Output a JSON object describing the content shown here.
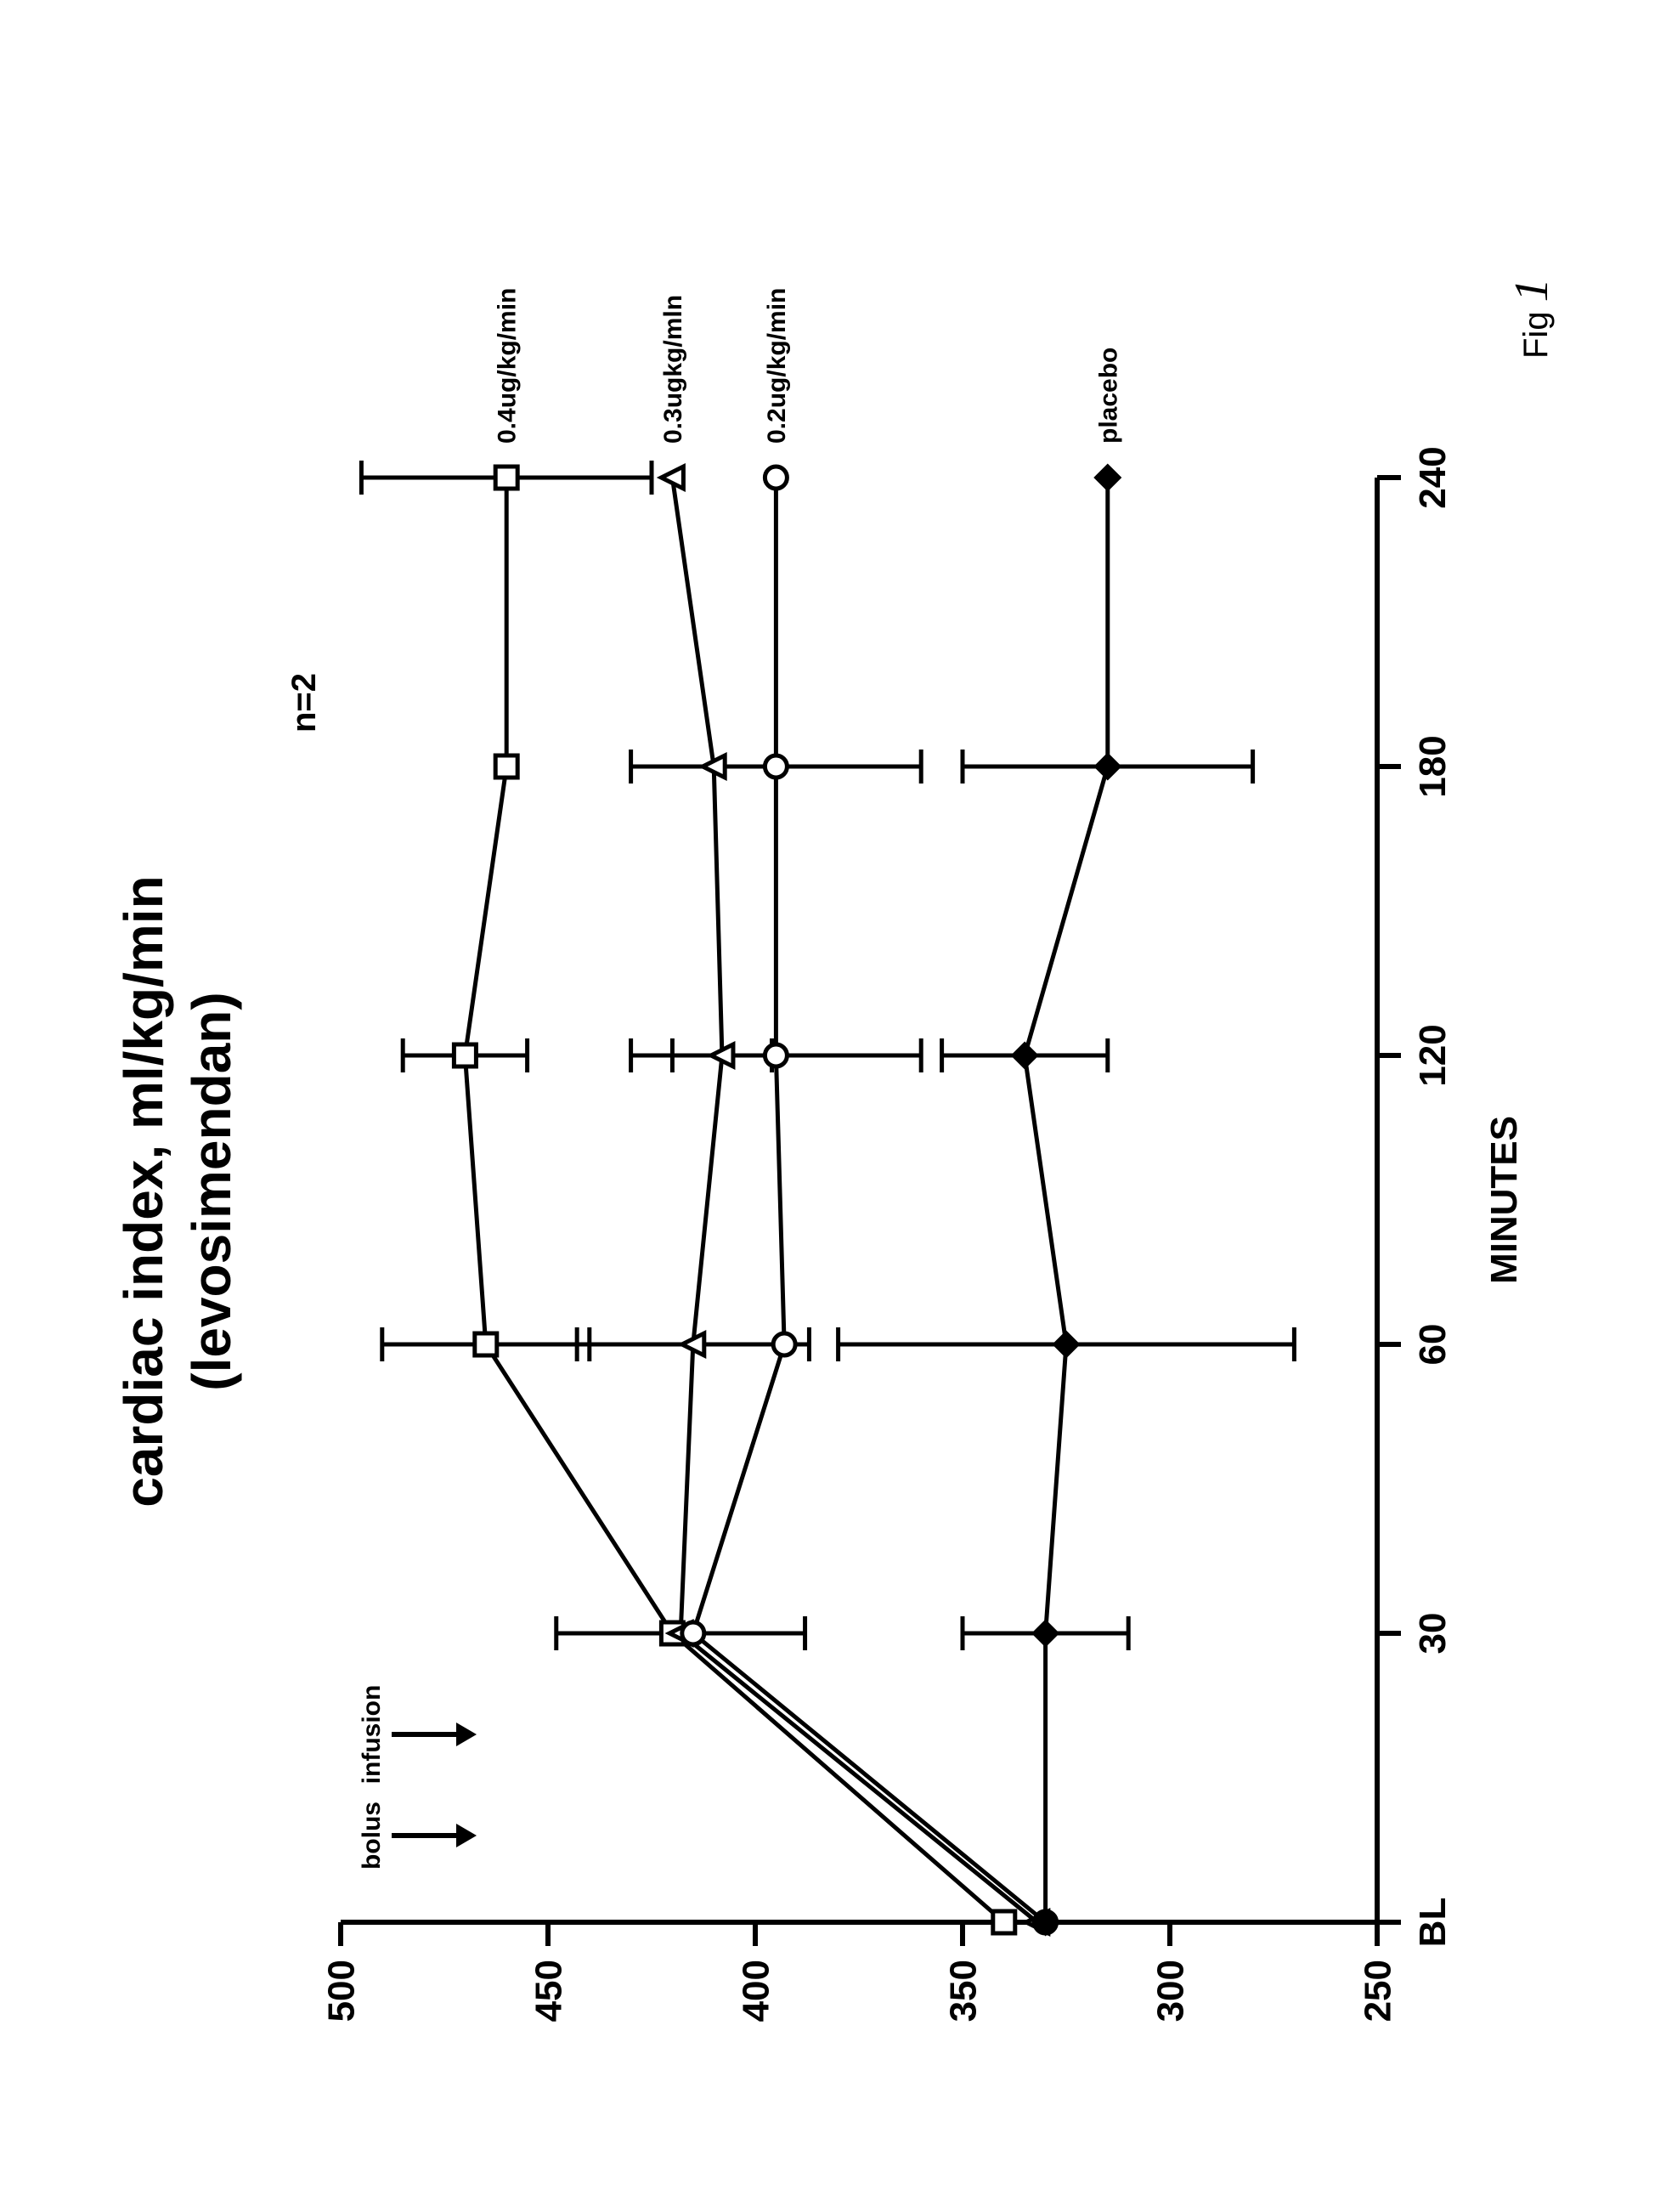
{
  "figure": {
    "type": "line",
    "rotation_deg": -90,
    "title_line1": "cardiac index, ml/kg/min",
    "title_line2": "(levosimendan)",
    "title_fontsize": 64,
    "title_fontweight": "bold",
    "xaxis": {
      "label": "MINUTES",
      "label_fontsize": 44,
      "label_fontweight": "bold",
      "categories": [
        "BL",
        "30",
        "60",
        "120",
        "180",
        "240"
      ],
      "tick_fontsize": 44,
      "tick_fontweight": "bold"
    },
    "yaxis": {
      "ylim": [
        250,
        500
      ],
      "ticks": [
        250,
        300,
        350,
        400,
        450,
        500
      ],
      "tick_fontsize": 44,
      "tick_fontweight": "bold"
    },
    "series": [
      {
        "id": "s04",
        "label": "0.4ug/kg/min",
        "marker": "square_open",
        "values": [
          340,
          420,
          465,
          470,
          460,
          460
        ],
        "err": [
          0,
          0,
          25,
          15,
          0,
          35
        ],
        "label_fontsize": 30,
        "label_fontweight": "bold"
      },
      {
        "id": "s03",
        "label": "0.3ugkg/mln",
        "marker": "triangle_open",
        "values": [
          332,
          418,
          415,
          408,
          410,
          420
        ],
        "err": [
          0,
          30,
          28,
          12,
          0,
          0
        ],
        "label_fontsize": 30,
        "label_fontweight": "bold"
      },
      {
        "id": "s02",
        "label": "0.2ug/kg/min",
        "marker": "circle_open",
        "values": [
          330,
          415,
          393,
          395,
          395,
          395
        ],
        "err": [
          0,
          0,
          0,
          35,
          35,
          0
        ],
        "label_fontsize": 30,
        "label_fontweight": "bold"
      },
      {
        "id": "plc",
        "label": "placebo",
        "marker": "diamond_filled",
        "values": [
          330,
          330,
          325,
          335,
          315,
          315
        ],
        "err": [
          0,
          20,
          55,
          20,
          35,
          0
        ],
        "label_fontsize": 30,
        "label_fontweight": "bold"
      }
    ],
    "styling": {
      "line_width": 5,
      "marker_size": 26,
      "marker_stroke_width": 5,
      "errorbar_width": 5,
      "errorbar_cap": 20,
      "axis_stroke_width": 6,
      "tick_len": 28,
      "color": "#000000",
      "background": "#ffffff"
    },
    "annotations": {
      "bolus": {
        "text": "bolus",
        "fontsize": 30,
        "fontweight": "bold",
        "arrow_len": 80
      },
      "infusion": {
        "text": "infusion",
        "fontsize": 30,
        "fontweight": "bold",
        "arrow_len": 80
      },
      "n2": {
        "text": "n=2",
        "fontsize": 40,
        "fontweight": "bold"
      },
      "fig": {
        "prefix": "Fig ",
        "num": "1",
        "prefix_fontsize": 40,
        "num_fontsize": 56
      }
    }
  }
}
